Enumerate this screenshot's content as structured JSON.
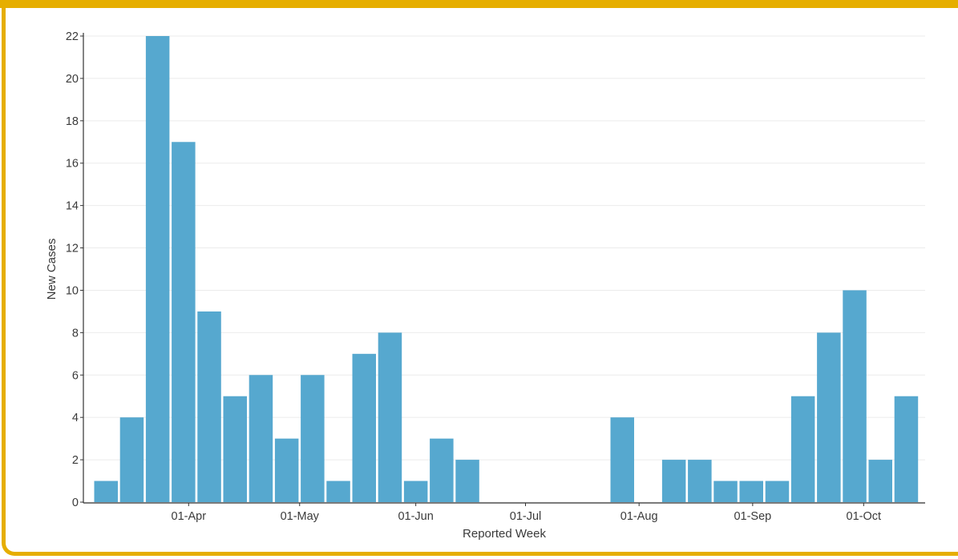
{
  "colors": {
    "frame": "#E6AE00",
    "bar": "#56A8CF",
    "grid": "#EBEBEB",
    "axis": "#333333"
  },
  "chart_data": {
    "type": "bar",
    "title": "",
    "xlabel": "Reported Week",
    "ylabel": "New Cases",
    "ylim": [
      0,
      22
    ],
    "yticks": [
      0,
      2,
      4,
      6,
      8,
      10,
      12,
      14,
      16,
      18,
      20,
      22
    ],
    "x_tick_labels": [
      {
        "label": "01-Apr",
        "week_index": 3.2
      },
      {
        "label": "01-May",
        "week_index": 7.5
      },
      {
        "label": "01-Jun",
        "week_index": 12.0
      },
      {
        "label": "01-Jul",
        "week_index": 16.25
      },
      {
        "label": "01-Aug",
        "week_index": 20.65
      },
      {
        "label": "01-Sep",
        "week_index": 25.05
      },
      {
        "label": "01-Oct",
        "week_index": 29.35
      }
    ],
    "grid": true,
    "values": [
      1,
      4,
      22,
      17,
      9,
      5,
      6,
      3,
      6,
      1,
      7,
      8,
      1,
      3,
      2,
      0,
      0,
      0,
      0,
      0,
      4,
      0,
      2,
      2,
      1,
      1,
      1,
      5,
      8,
      10,
      2,
      5
    ]
  }
}
